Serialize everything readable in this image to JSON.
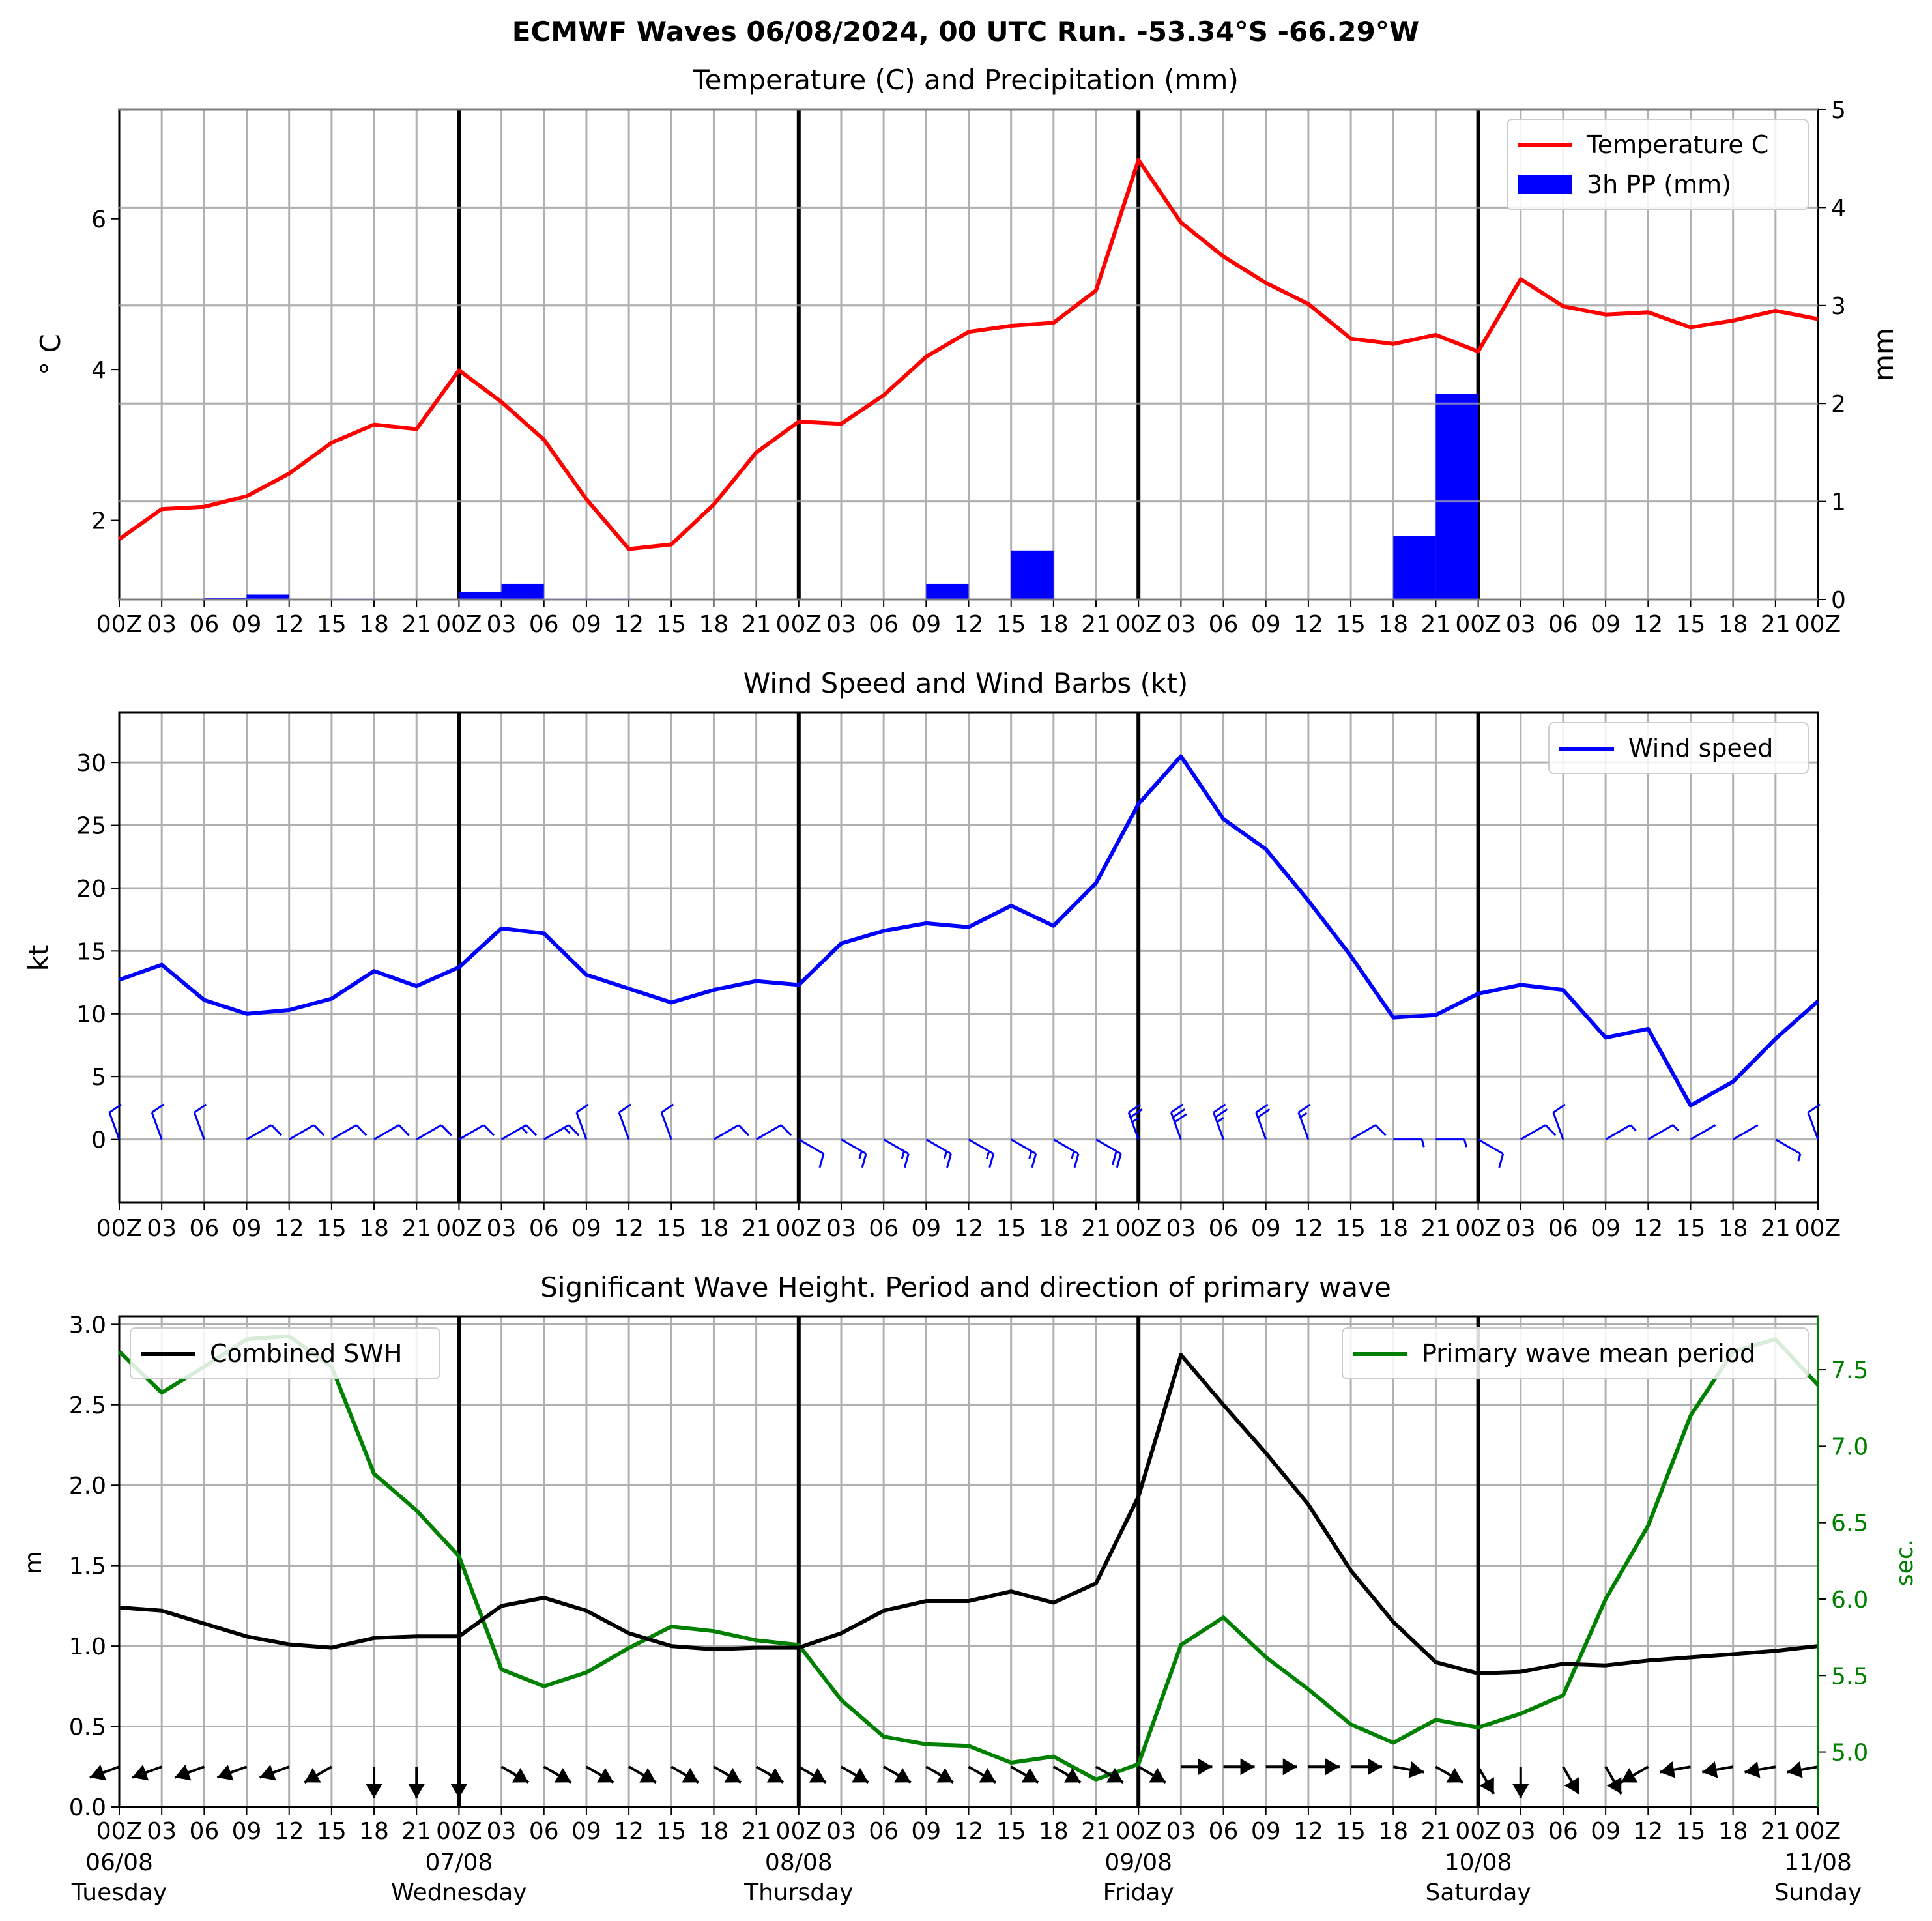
{
  "figure": {
    "suptitle": "ECMWF Waves 06/08/2024, 00 UTC Run. -53.34°S -66.29°W",
    "day_labels": [
      {
        "date": "06/08",
        "day": "Tuesday"
      },
      {
        "date": "07/08",
        "day": "Wednesday"
      },
      {
        "date": "08/08",
        "day": "Thursday"
      },
      {
        "date": "09/08",
        "day": "Friday"
      },
      {
        "date": "10/08",
        "day": "Saturday"
      },
      {
        "date": "11/08",
        "day": "Sunday"
      }
    ],
    "colors": {
      "temperature": "#ff0000",
      "precip": "#0000ff",
      "wind": "#0000ff",
      "swh": "#000000",
      "period": "#008000",
      "grid": "#b0b0b0"
    }
  },
  "chart_data": [
    {
      "type": "line",
      "title": "Temperature (C) and Precipitation (mm)",
      "x_hours": [
        0,
        3,
        6,
        9,
        12,
        15,
        18,
        21,
        24,
        27,
        30,
        33,
        36,
        39,
        42,
        45,
        48,
        51,
        54,
        57,
        60,
        63,
        66,
        69,
        72,
        75,
        78,
        81,
        84,
        87,
        90,
        93,
        96,
        99,
        102,
        105,
        108,
        111,
        114,
        117,
        120
      ],
      "xtick_labels": [
        "00Z",
        "03",
        "06",
        "09",
        "12",
        "15",
        "18",
        "21",
        "00Z",
        "03",
        "06",
        "09",
        "12",
        "15",
        "18",
        "21",
        "00Z",
        "03",
        "06",
        "09",
        "12",
        "15",
        "18",
        "21",
        "00Z",
        "03",
        "06",
        "09",
        "12",
        "15",
        "18",
        "21",
        "00Z",
        "03",
        "06",
        "09",
        "12",
        "15",
        "18",
        "21",
        "00Z"
      ],
      "ylabel": "° C",
      "ylabel_right": "mm",
      "ylim": [
        0.95,
        7.45
      ],
      "yticks": [
        2,
        4,
        6
      ],
      "ylim_right": [
        0,
        5
      ],
      "yticks_right": [
        0,
        1,
        2,
        3,
        4,
        5
      ],
      "legend": [
        "Temperature C",
        "3h PP (mm)"
      ],
      "legend_position": "upper right",
      "series": [
        {
          "name": "Temperature C",
          "values": [
            1.75,
            2.15,
            2.18,
            2.32,
            2.62,
            3.03,
            3.27,
            3.21,
            3.99,
            3.57,
            3.07,
            2.28,
            1.62,
            1.68,
            2.21,
            2.9,
            3.31,
            3.28,
            3.66,
            4.17,
            4.5,
            4.58,
            4.62,
            5.05,
            6.78,
            5.95,
            5.5,
            5.15,
            4.87,
            4.41,
            4.34,
            4.46,
            4.24,
            5.2,
            4.84,
            4.73,
            4.76,
            4.56,
            4.65,
            4.78,
            4.67
          ]
        },
        {
          "name": "3h PP (mm)",
          "type": "bar",
          "bar_start_hours": [
            6,
            9,
            15,
            24,
            27,
            30,
            33,
            57,
            63,
            90,
            93
          ],
          "values": [
            0.02,
            0.05,
            0.01,
            0.08,
            0.16,
            0.01,
            0.01,
            0.16,
            0.5,
            0.65,
            2.1
          ]
        }
      ]
    },
    {
      "type": "line",
      "title": "Wind Speed and Wind Barbs (kt)",
      "ylabel": "kt",
      "ylim": [
        -5,
        34
      ],
      "yticks": [
        0,
        5,
        10,
        15,
        20,
        25,
        30
      ],
      "legend": [
        "Wind speed"
      ],
      "legend_position": "upper right",
      "series": [
        {
          "name": "Wind speed",
          "values": [
            12.7,
            13.9,
            11.1,
            10.0,
            10.3,
            11.2,
            13.4,
            12.2,
            13.7,
            16.8,
            16.4,
            13.1,
            12.0,
            10.9,
            11.9,
            12.6,
            12.3,
            15.6,
            16.6,
            17.2,
            16.9,
            18.6,
            17.0,
            20.4,
            26.7,
            30.5,
            25.5,
            23.1,
            19.0,
            14.6,
            9.7,
            9.9,
            11.6,
            12.3,
            11.9,
            8.1,
            8.8,
            2.7,
            4.6,
            8.0,
            11.0
          ]
        }
      ],
      "barb_angles_deg": [
        110,
        110,
        110,
        30,
        30,
        30,
        30,
        30,
        30,
        30,
        30,
        110,
        110,
        110,
        30,
        30,
        330,
        330,
        330,
        330,
        330,
        330,
        330,
        330,
        110,
        110,
        110,
        110,
        110,
        30,
        0,
        0,
        330,
        30,
        110,
        30,
        30,
        30,
        30,
        330,
        110
      ]
    },
    {
      "type": "line",
      "title": "Significant Wave Height. Period and direction of primary wave",
      "ylabel": "m",
      "ylabel_right": "sec.",
      "ylim": [
        0,
        3.05
      ],
      "yticks": [
        0.0,
        0.5,
        1.0,
        1.5,
        2.0,
        2.5,
        3.0
      ],
      "ylim_right": [
        4.64,
        7.85
      ],
      "yticks_right": [
        5.0,
        5.5,
        6.0,
        6.5,
        7.0,
        7.5
      ],
      "legend": [
        "Combined SWH",
        "Primary wave mean period"
      ],
      "legend_position": "upper left / upper right",
      "series": [
        {
          "name": "Combined SWH",
          "values": [
            1.24,
            1.22,
            1.14,
            1.06,
            1.01,
            0.99,
            1.05,
            1.06,
            1.06,
            1.25,
            1.3,
            1.22,
            1.08,
            1.0,
            0.98,
            0.99,
            0.99,
            1.08,
            1.22,
            1.28,
            1.28,
            1.34,
            1.27,
            1.39,
            1.93,
            2.81,
            2.5,
            2.2,
            1.88,
            1.47,
            1.15,
            0.9,
            0.83,
            0.84,
            0.89,
            0.88,
            0.91,
            0.93,
            0.95,
            0.97,
            1.0
          ]
        },
        {
          "name": "Primary wave mean period",
          "values": [
            7.62,
            7.35,
            7.52,
            7.7,
            7.72,
            7.52,
            6.82,
            6.58,
            6.28,
            5.54,
            5.43,
            5.52,
            5.68,
            5.82,
            5.79,
            5.73,
            5.7,
            5.34,
            5.1,
            5.05,
            5.04,
            4.93,
            4.97,
            4.82,
            4.92,
            5.7,
            5.88,
            5.62,
            5.41,
            5.18,
            5.06,
            5.21,
            5.16,
            5.25,
            5.37,
            6.0,
            6.48,
            7.2,
            7.62,
            7.7,
            7.4
          ]
        }
      ],
      "arrow_angles_deg": [
        200,
        200,
        200,
        200,
        200,
        210,
        270,
        270,
        270,
        330,
        330,
        330,
        330,
        330,
        330,
        330,
        330,
        330,
        330,
        330,
        330,
        330,
        330,
        330,
        330,
        0,
        0,
        0,
        0,
        0,
        350,
        330,
        300,
        270,
        300,
        300,
        210,
        190,
        190,
        190,
        190
      ]
    }
  ]
}
